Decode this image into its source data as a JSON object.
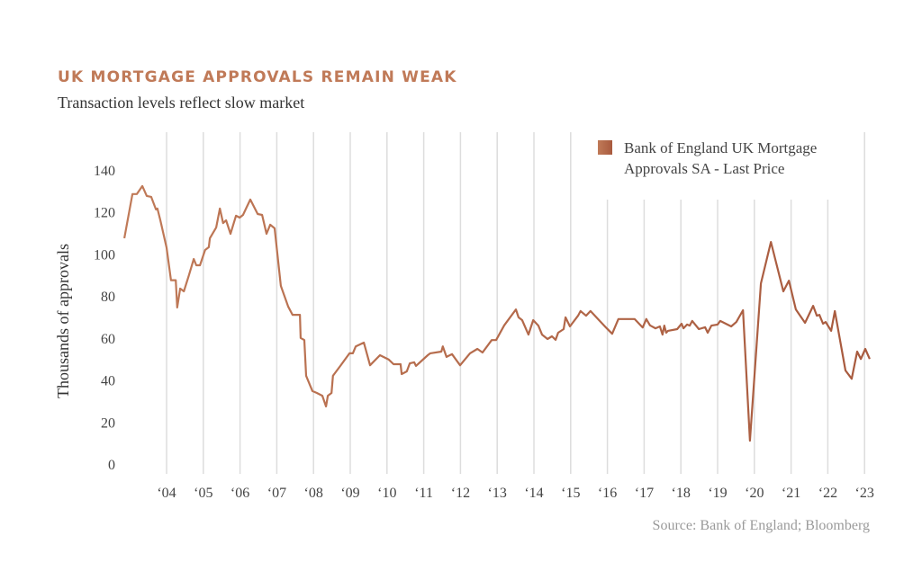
{
  "header": {
    "title": "UK MORTGAGE APPROVALS REMAIN WEAK",
    "subtitle": "Transaction levels reflect slow market"
  },
  "footer": {
    "source": "Source:  Bank of England; Bloomberg"
  },
  "colors": {
    "title": "#c07a58",
    "series": "#c07a58",
    "series_end": "#a85a3e",
    "grid": "#dddddd"
  },
  "chart_data": {
    "type": "line",
    "title": "UK MORTGAGE APPROVALS REMAIN WEAK",
    "subtitle": "Transaction levels reflect slow market",
    "xlabel": "",
    "ylabel": "Thousands of approvals",
    "ylim": [
      0,
      140
    ],
    "xlim": [
      2002.8,
      2023.3
    ],
    "yticks": [
      0,
      20,
      40,
      60,
      80,
      100,
      120,
      140
    ],
    "xtick_values": [
      2004,
      2005,
      2006,
      2007,
      2008,
      2009,
      2010,
      2011,
      2012,
      2013,
      2014,
      2015,
      2016,
      2017,
      2018,
      2019,
      2020,
      2021,
      2022,
      2023
    ],
    "xtick_labels": [
      "‘04",
      "‘05",
      "‘06",
      "‘07",
      "‘08",
      "‘09",
      "‘10",
      "‘11",
      "‘12",
      "‘13",
      "‘14",
      "‘15",
      "‘16",
      "‘17",
      "‘18",
      "‘19",
      "‘20",
      "‘21",
      "‘22",
      "‘23"
    ],
    "grid": "vertical",
    "legend": {
      "position": "top-right",
      "lines": [
        "Bank of England UK Mortgage",
        "Approvals SA - Last Price"
      ]
    },
    "source": "Source: Bank of England; Bloomberg",
    "series": [
      {
        "name": "Bank of England UK Mortgage Approvals SA - Last Price",
        "x": [
          2002.85,
          2003.07,
          2003.19,
          2003.34,
          2003.46,
          2003.58,
          2003.71,
          2003.75,
          2003.83,
          2004.0,
          2004.12,
          2004.25,
          2004.29,
          2004.37,
          2004.47,
          2004.61,
          2004.74,
          2004.81,
          2004.91,
          2005.05,
          2005.15,
          2005.18,
          2005.35,
          2005.45,
          2005.54,
          2005.62,
          2005.74,
          2005.89,
          2005.99,
          2006.08,
          2006.28,
          2006.48,
          2006.6,
          2006.72,
          2006.82,
          2006.94,
          2007.11,
          2007.31,
          2007.43,
          2007.63,
          2007.65,
          2007.75,
          2007.8,
          2007.97,
          2008.09,
          2008.24,
          2008.34,
          2008.39,
          2008.49,
          2008.53,
          2008.73,
          2008.98,
          2009.07,
          2009.15,
          2009.37,
          2009.54,
          2009.81,
          2010.05,
          2010.18,
          2010.37,
          2010.4,
          2010.54,
          2010.62,
          2010.74,
          2010.79,
          2011.11,
          2011.18,
          2011.48,
          2011.52,
          2011.62,
          2011.77,
          2011.99,
          2012.26,
          2012.46,
          2012.6,
          2012.85,
          2012.97,
          2013.19,
          2013.51,
          2013.58,
          2013.68,
          2013.85,
          2013.98,
          2014.12,
          2014.22,
          2014.37,
          2014.49,
          2014.59,
          2014.66,
          2014.81,
          2014.86,
          2014.98,
          2015.2,
          2015.27,
          2015.42,
          2015.54,
          2015.96,
          2016.13,
          2016.3,
          2016.74,
          2016.96,
          2017.06,
          2017.16,
          2017.31,
          2017.43,
          2017.5,
          2017.55,
          2017.6,
          2017.65,
          2017.9,
          2018.02,
          2018.07,
          2018.17,
          2018.24,
          2018.31,
          2018.49,
          2018.66,
          2018.73,
          2018.83,
          2019.0,
          2019.07,
          2019.37,
          2019.51,
          2019.69,
          2019.88,
          2020.18,
          2020.45,
          2020.79,
          2020.94,
          2021.13,
          2021.38,
          2021.6,
          2021.7,
          2021.77,
          2021.87,
          2021.94,
          2022.09,
          2022.19,
          2022.48,
          2022.65,
          2022.8,
          2022.9,
          2023.02,
          2023.14
        ],
        "y": [
          107.5,
          128.5,
          128.5,
          132.3,
          127.6,
          127.2,
          121.2,
          121.6,
          116,
          103,
          87.5,
          87.5,
          74.5,
          83.5,
          82.2,
          90,
          97.6,
          94.6,
          94.6,
          101.9,
          103.2,
          107.5,
          112.6,
          121.6,
          114.7,
          116,
          109.6,
          118.2,
          117.3,
          118.6,
          125.9,
          119,
          118.6,
          109.6,
          113.9,
          112.2,
          84.8,
          75,
          71,
          71,
          60,
          59,
          42,
          34.7,
          33.8,
          32.5,
          27.4,
          32.5,
          33.8,
          42,
          46.7,
          52.7,
          52.7,
          56,
          57.8,
          47,
          51.8,
          49.7,
          47.5,
          47.5,
          42.8,
          44.1,
          47.9,
          48.4,
          46.7,
          51.8,
          52.7,
          53.5,
          56,
          51,
          52.3,
          47,
          52.7,
          54.8,
          53.1,
          59,
          59,
          66,
          73.6,
          69.8,
          68.5,
          61.6,
          68.5,
          65.9,
          61.6,
          59.5,
          60.8,
          59.1,
          62.5,
          64.2,
          69.8,
          65.5,
          70.6,
          72.8,
          70.6,
          72.8,
          65,
          62,
          69,
          69,
          65,
          69,
          66,
          64.6,
          65.5,
          61.6,
          65.9,
          62.5,
          63.4,
          64.2,
          66.8,
          64.6,
          66.4,
          65.9,
          68.1,
          64.2,
          65.1,
          62.5,
          65.9,
          66.4,
          68.1,
          65.5,
          67.6,
          73.2,
          11.1,
          86,
          105.7,
          82.2,
          87.3,
          73.6,
          67.2,
          75.3,
          70.6,
          71,
          66.8,
          67.6,
          63.4,
          72.8,
          44.5,
          40.6,
          53.5,
          50,
          54.8,
          50
        ]
      }
    ]
  }
}
